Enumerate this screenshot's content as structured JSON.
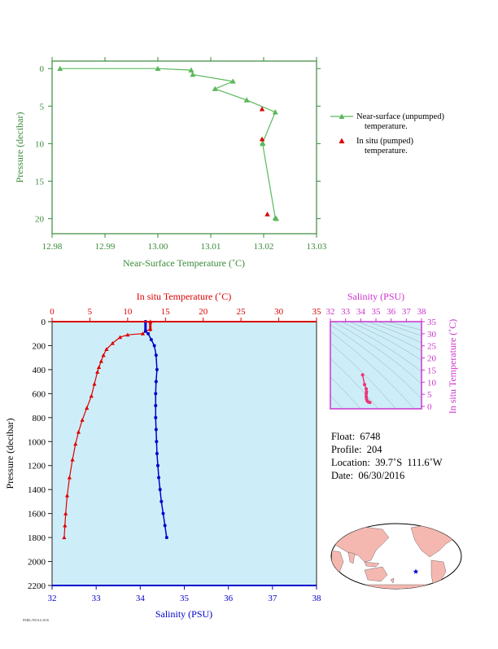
{
  "chart_data": [
    {
      "type": "line",
      "xlabel": "Near-Surface Temperature (˚C)",
      "ylabel": "Pressure (decibar)",
      "xlim": [
        12.98,
        13.03
      ],
      "ylim": [
        22,
        -1
      ],
      "xticks": [
        "12.98",
        "12.99",
        "13.00",
        "13.01",
        "13.02",
        "13.03"
      ],
      "yticks": [
        "0",
        "5",
        "10",
        "15",
        "20"
      ],
      "colors": {
        "near_surface": "#5cb85c",
        "in_situ": "#dd0000",
        "axes": "#3a8a3a"
      },
      "series": [
        {
          "name": "Near-surface (unpumped) temperature.",
          "points": [
            [
              12.9815,
              0.0
            ],
            [
              13.0,
              0.0
            ],
            [
              13.0063,
              0.2
            ],
            [
              13.0066,
              0.8
            ],
            [
              13.0142,
              1.7
            ],
            [
              13.0108,
              2.7
            ],
            [
              13.0168,
              4.2
            ],
            [
              13.0222,
              5.8
            ],
            [
              13.0198,
              9.9
            ],
            [
              13.0198,
              10.0
            ],
            [
              13.0222,
              19.9
            ],
            [
              13.0224,
              20.0
            ]
          ]
        },
        {
          "name": "In situ (pumped) temperature.",
          "points": [
            [
              13.0197,
              5.4
            ],
            [
              13.0197,
              9.4
            ],
            [
              13.0207,
              19.4
            ]
          ]
        }
      ]
    },
    {
      "type": "line",
      "ylabel": "Pressure (decibar)",
      "xlabel_bottom": "Salinity (PSU)",
      "xlabel_top": "In situ Temperature (˚C)",
      "salinity_xlim": [
        32,
        38
      ],
      "temperature_xlim": [
        0,
        35
      ],
      "ylim": [
        2200,
        0
      ],
      "salinity_ticks": [
        "32",
        "33",
        "34",
        "35",
        "36",
        "37",
        "38"
      ],
      "temperature_ticks": [
        "0",
        "5",
        "10",
        "15",
        "20",
        "25",
        "30",
        "35"
      ],
      "pressure_ticks": [
        "0",
        "200",
        "400",
        "600",
        "800",
        "1000",
        "1200",
        "1400",
        "1600",
        "1800",
        "2000",
        "2200"
      ],
      "colors": {
        "temperature": "#dd0000",
        "salinity": "#0000cc",
        "background": "#cdeef8"
      },
      "series": [
        {
          "name": "In situ Temperature (˚C)",
          "axis": "top",
          "points": [
            [
              13.0,
              0
            ],
            [
              13.0,
              60
            ],
            [
              12.0,
              100
            ],
            [
              10.0,
              110
            ],
            [
              9.0,
              130
            ],
            [
              8.0,
              180
            ],
            [
              7.2,
              230
            ],
            [
              6.8,
              280
            ],
            [
              6.5,
              330
            ],
            [
              6.2,
              380
            ],
            [
              6.0,
              420
            ],
            [
              5.6,
              520
            ],
            [
              5.2,
              620
            ],
            [
              4.6,
              720
            ],
            [
              4.0,
              820
            ],
            [
              3.5,
              920
            ],
            [
              3.1,
              1020
            ],
            [
              2.7,
              1150
            ],
            [
              2.3,
              1300
            ],
            [
              2.0,
              1450
            ],
            [
              1.8,
              1600
            ],
            [
              1.7,
              1700
            ],
            [
              1.6,
              1800
            ]
          ]
        },
        {
          "name": "Salinity (PSU)",
          "axis": "bottom",
          "points": [
            [
              34.12,
              0
            ],
            [
              34.12,
              80
            ],
            [
              34.18,
              100
            ],
            [
              34.25,
              150
            ],
            [
              34.32,
              200
            ],
            [
              34.36,
              280
            ],
            [
              34.38,
              400
            ],
            [
              34.36,
              500
            ],
            [
              34.35,
              600
            ],
            [
              34.35,
              700
            ],
            [
              34.35,
              800
            ],
            [
              34.36,
              900
            ],
            [
              34.37,
              1000
            ],
            [
              34.38,
              1100
            ],
            [
              34.4,
              1200
            ],
            [
              34.42,
              1300
            ],
            [
              34.45,
              1400
            ],
            [
              34.48,
              1500
            ],
            [
              34.52,
              1600
            ],
            [
              34.56,
              1700
            ],
            [
              34.6,
              1800
            ]
          ]
        }
      ]
    },
    {
      "type": "scatter",
      "title": "Salinity (PSU)",
      "ylabel": "In situ Temperature (˚C)",
      "xlim": [
        32,
        38
      ],
      "ylim": [
        -1,
        35
      ],
      "xticks": [
        "32",
        "33",
        "34",
        "35",
        "36",
        "37",
        "38"
      ],
      "yticks": [
        "0",
        "5",
        "10",
        "15",
        "20",
        "25",
        "30",
        "35"
      ],
      "colors": {
        "frame": "#cc33cc",
        "points": "#ee3377",
        "background": "#cdeef8"
      },
      "points": [
        [
          34.12,
          13.0
        ],
        [
          34.25,
          9.0
        ],
        [
          34.36,
          7.2
        ],
        [
          34.38,
          6.0
        ],
        [
          34.36,
          5.2
        ],
        [
          34.36,
          4.0
        ],
        [
          34.38,
          3.1
        ],
        [
          34.42,
          2.3
        ],
        [
          34.5,
          1.8
        ],
        [
          34.6,
          1.6
        ]
      ]
    }
  ],
  "info": {
    "float": "Float:  6748",
    "profile": "Profile:  204",
    "location": "Location:  39.7˚S  111.6˚W",
    "date": "Date:  06/30/2016"
  },
  "legend": {
    "near_surface_l1": "Near-surface (unpumped)",
    "near_surface_l2": "temperature.",
    "in_situ_l1": "In situ (pumped)",
    "in_situ_l2": "temperature."
  },
  "map": {
    "marker": "star",
    "marker_color": "#0000cc",
    "land_color": "#f4b8b0",
    "ocean_color": "#ffffff"
  },
  "footer_text": "PMEL/NOAA 2016"
}
